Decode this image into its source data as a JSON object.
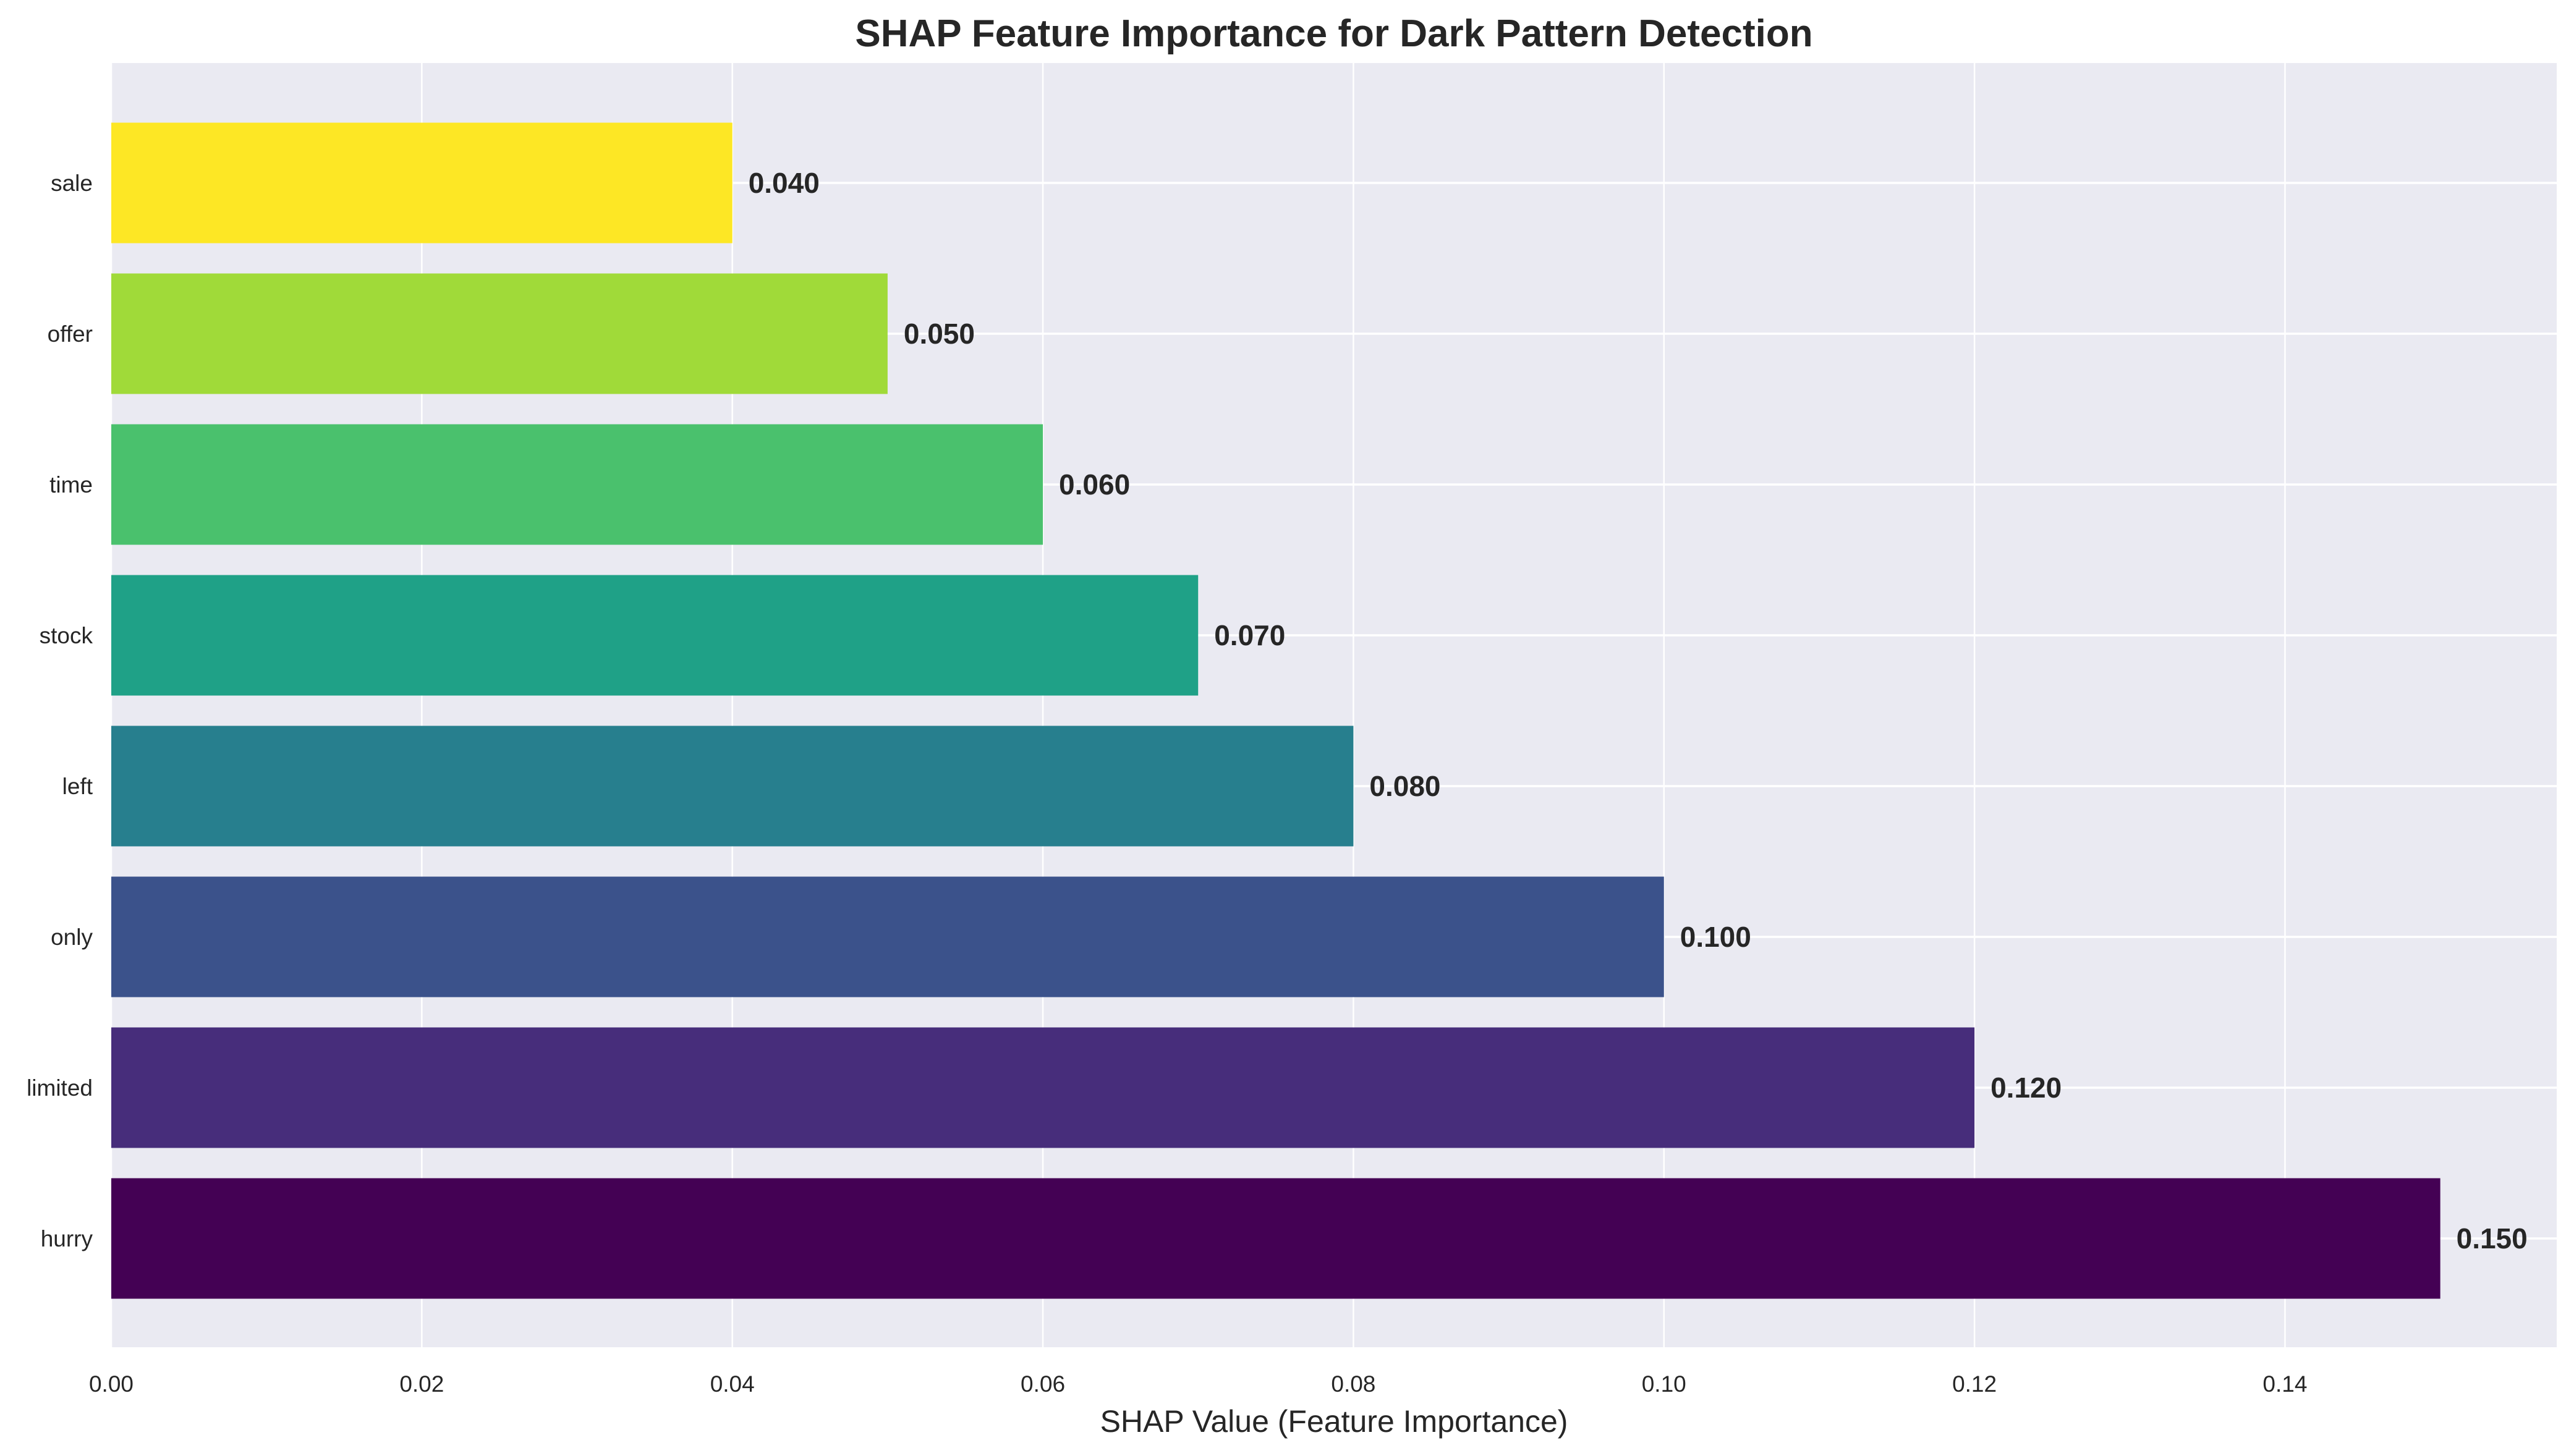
{
  "chart_data": {
    "type": "bar",
    "orientation": "horizontal",
    "title": "SHAP Feature Importance for Dark Pattern Detection",
    "xlabel": "SHAP Value (Feature Importance)",
    "ylabel": "",
    "xlim": [
      0,
      0.1575
    ],
    "xticks": [
      0.0,
      0.02,
      0.04,
      0.06,
      0.08,
      0.1,
      0.12,
      0.14
    ],
    "xtick_labels": [
      "0.00",
      "0.02",
      "0.04",
      "0.06",
      "0.08",
      "0.10",
      "0.12",
      "0.14"
    ],
    "grid": true,
    "categories": [
      "hurry",
      "limited",
      "only",
      "left",
      "stock",
      "time",
      "offer",
      "sale"
    ],
    "values": [
      0.15,
      0.12,
      0.1,
      0.08,
      0.07,
      0.06,
      0.05,
      0.04
    ],
    "value_labels": [
      "0.150",
      "0.120",
      "0.100",
      "0.080",
      "0.070",
      "0.060",
      "0.050",
      "0.040"
    ],
    "colors": [
      "#440154",
      "#472d7b",
      "#3b528b",
      "#2c728e",
      "#21918c",
      "#28ae80",
      "#5ec962",
      "#addc30",
      "#fde725"
    ],
    "bar_colors": [
      "#440154",
      "#472d7b",
      "#3b528b",
      "#277f8e",
      "#1fa187",
      "#4ac16d",
      "#a0da39",
      "#fde725"
    ],
    "background": "#eaeaf2"
  }
}
